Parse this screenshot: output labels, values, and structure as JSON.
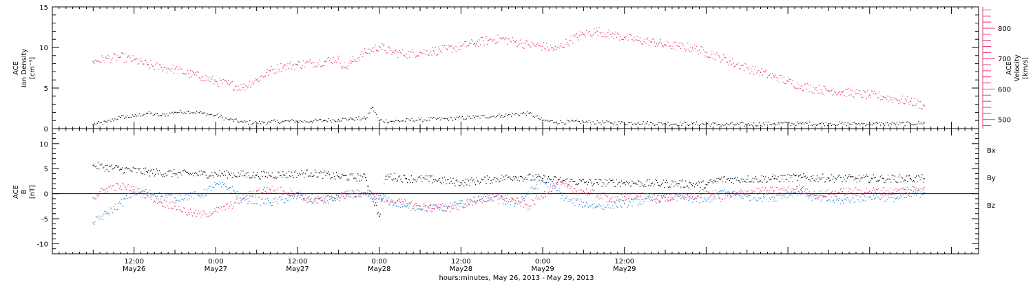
{
  "colors": {
    "black": "#000000",
    "red": "#e8356a",
    "blue": "#1e86d8"
  },
  "chart_data": [
    {
      "type": "scatter",
      "panel": "top",
      "ylabel_lines": [
        "ACE",
        "Ion Density",
        "[cm⁻³]"
      ],
      "ylim": [
        0,
        15
      ],
      "yticks": [
        0,
        5,
        10,
        15
      ],
      "right_axis": {
        "label_lines": [
          "ACE",
          "Velocity",
          "[km/s]"
        ],
        "ylim": [
          470,
          870
        ],
        "yticks": [
          500,
          600,
          700,
          800
        ]
      },
      "series": [
        {
          "color": "#000000",
          "axis": "left",
          "points": [
            [
              0,
              0.5
            ],
            [
              2,
              0.8
            ],
            [
              4,
              1.4
            ],
            [
              6,
              1.5
            ],
            [
              8,
              1.9
            ],
            [
              10,
              1.6
            ],
            [
              12,
              2.0
            ],
            [
              14,
              2.1
            ],
            [
              16,
              1.9
            ],
            [
              18,
              1.6
            ],
            [
              20,
              1.1
            ],
            [
              22,
              0.8
            ],
            [
              24,
              0.7
            ],
            [
              26,
              0.8
            ],
            [
              28,
              0.9
            ],
            [
              30,
              0.9
            ],
            [
              32,
              0.9
            ],
            [
              34,
              1.0
            ],
            [
              36,
              1.1
            ],
            [
              38,
              1.2
            ],
            [
              40,
              1.2
            ],
            [
              41,
              2.6
            ],
            [
              42,
              1.0
            ],
            [
              44,
              0.9
            ],
            [
              48,
              1.1
            ],
            [
              52,
              1.2
            ],
            [
              56,
              1.4
            ],
            [
              60,
              1.6
            ],
            [
              64,
              1.9
            ],
            [
              66,
              1.0
            ],
            [
              68,
              0.8
            ],
            [
              72,
              0.8
            ],
            [
              76,
              0.7
            ],
            [
              80,
              0.7
            ],
            [
              84,
              0.6
            ],
            [
              88,
              0.6
            ],
            [
              92,
              0.5
            ],
            [
              96,
              0.5
            ],
            [
              100,
              0.6
            ],
            [
              104,
              0.6
            ],
            [
              108,
              0.6
            ],
            [
              112,
              0.6
            ],
            [
              116,
              0.6
            ],
            [
              120,
              0.6
            ],
            [
              122,
              0.7
            ]
          ]
        },
        {
          "color": "#e8356a",
          "axis": "right",
          "points": [
            [
              0,
              690
            ],
            [
              2,
              700
            ],
            [
              4,
              705
            ],
            [
              6,
              695
            ],
            [
              8,
              680
            ],
            [
              10,
              670
            ],
            [
              12,
              665
            ],
            [
              14,
              650
            ],
            [
              16,
              640
            ],
            [
              18,
              625
            ],
            [
              20,
              615
            ],
            [
              22,
              605
            ],
            [
              24,
              630
            ],
            [
              26,
              660
            ],
            [
              28,
              675
            ],
            [
              30,
              680
            ],
            [
              32,
              685
            ],
            [
              34,
              690
            ],
            [
              36,
              700
            ],
            [
              37,
              670
            ],
            [
              38,
              690
            ],
            [
              40,
              720
            ],
            [
              42,
              740
            ],
            [
              44,
              720
            ],
            [
              46,
              715
            ],
            [
              48,
              720
            ],
            [
              50,
              725
            ],
            [
              52,
              730
            ],
            [
              54,
              740
            ],
            [
              56,
              750
            ],
            [
              58,
              760
            ],
            [
              60,
              765
            ],
            [
              62,
              755
            ],
            [
              64,
              745
            ],
            [
              66,
              740
            ],
            [
              68,
              730
            ],
            [
              70,
              760
            ],
            [
              72,
              780
            ],
            [
              74,
              790
            ],
            [
              76,
              780
            ],
            [
              78,
              770
            ],
            [
              80,
              760
            ],
            [
              82,
              755
            ],
            [
              84,
              745
            ],
            [
              86,
              740
            ],
            [
              88,
              735
            ],
            [
              90,
              720
            ],
            [
              92,
              705
            ],
            [
              94,
              685
            ],
            [
              96,
              670
            ],
            [
              98,
              655
            ],
            [
              100,
              640
            ],
            [
              102,
              625
            ],
            [
              104,
              610
            ],
            [
              106,
              600
            ],
            [
              108,
              595
            ],
            [
              110,
              590
            ],
            [
              112,
              585
            ],
            [
              114,
              580
            ],
            [
              116,
              575
            ],
            [
              118,
              565
            ],
            [
              120,
              560
            ],
            [
              122,
              545
            ]
          ]
        }
      ]
    },
    {
      "type": "scatter",
      "panel": "bottom",
      "ylabel_lines": [
        "ACE",
        "B",
        "[nT]"
      ],
      "ylim": [
        -12,
        13
      ],
      "yticks": [
        -10,
        -5,
        0,
        5,
        10
      ],
      "zero_line": true,
      "series": [
        {
          "name": "Bx",
          "color": "#000000",
          "points": [
            [
              0,
              5.6
            ],
            [
              4,
              4.9
            ],
            [
              8,
              4.3
            ],
            [
              12,
              4.0
            ],
            [
              16,
              3.9
            ],
            [
              20,
              3.9
            ],
            [
              24,
              3.7
            ],
            [
              28,
              3.8
            ],
            [
              32,
              4.1
            ],
            [
              36,
              3.4
            ],
            [
              40,
              3.2
            ],
            [
              42,
              -4.5
            ],
            [
              43,
              3.5
            ],
            [
              46,
              3.0
            ],
            [
              50,
              2.8
            ],
            [
              54,
              2.2
            ],
            [
              58,
              2.8
            ],
            [
              62,
              3.4
            ],
            [
              66,
              3.0
            ],
            [
              70,
              2.4
            ],
            [
              74,
              2.2
            ],
            [
              78,
              2.2
            ],
            [
              82,
              2.0
            ],
            [
              86,
              2.0
            ],
            [
              90,
              1.8
            ],
            [
              92,
              2.8
            ],
            [
              96,
              2.9
            ],
            [
              100,
              3.0
            ],
            [
              104,
              3.2
            ],
            [
              108,
              3.1
            ],
            [
              112,
              3.0
            ],
            [
              116,
              3.0
            ],
            [
              120,
              3.0
            ],
            [
              122,
              3.0
            ]
          ]
        },
        {
          "name": "By",
          "color": "#1e86d8",
          "points": [
            [
              0,
              -5.8
            ],
            [
              2,
              -4.0
            ],
            [
              4,
              -2.0
            ],
            [
              6,
              0.3
            ],
            [
              8,
              0.2
            ],
            [
              10,
              -0.5
            ],
            [
              12,
              -0.8
            ],
            [
              16,
              -0.2
            ],
            [
              18,
              1.8
            ],
            [
              20,
              1.2
            ],
            [
              22,
              -1.0
            ],
            [
              26,
              -1.8
            ],
            [
              30,
              -0.5
            ],
            [
              34,
              -1.5
            ],
            [
              38,
              0.0
            ],
            [
              42,
              -1.0
            ],
            [
              46,
              -2.5
            ],
            [
              50,
              -3.0
            ],
            [
              54,
              -2.0
            ],
            [
              58,
              -0.8
            ],
            [
              62,
              -2.0
            ],
            [
              66,
              2.5
            ],
            [
              70,
              -1.5
            ],
            [
              74,
              -2.5
            ],
            [
              78,
              -2.0
            ],
            [
              82,
              -1.2
            ],
            [
              86,
              -0.6
            ],
            [
              90,
              -1.5
            ],
            [
              92,
              0.4
            ],
            [
              96,
              -0.6
            ],
            [
              100,
              -0.8
            ],
            [
              104,
              0.6
            ],
            [
              106,
              -1.0
            ],
            [
              110,
              -1.4
            ],
            [
              114,
              -0.6
            ],
            [
              118,
              -0.9
            ],
            [
              122,
              0.2
            ]
          ]
        },
        {
          "name": "Bz",
          "color": "#e8356a",
          "points": [
            [
              0,
              -0.8
            ],
            [
              2,
              1.1
            ],
            [
              4,
              1.5
            ],
            [
              6,
              0.8
            ],
            [
              8,
              -0.4
            ],
            [
              10,
              -1.8
            ],
            [
              12,
              -2.5
            ],
            [
              14,
              -3.8
            ],
            [
              16,
              -4.2
            ],
            [
              18,
              -3.5
            ],
            [
              20,
              -2.5
            ],
            [
              22,
              -1.0
            ],
            [
              24,
              0.5
            ],
            [
              26,
              0.8
            ],
            [
              28,
              0.5
            ],
            [
              30,
              0.2
            ],
            [
              32,
              -1.5
            ],
            [
              34,
              -1.0
            ],
            [
              36,
              -0.5
            ],
            [
              40,
              0.2
            ],
            [
              44,
              -1.5
            ],
            [
              48,
              -2.5
            ],
            [
              52,
              -3.0
            ],
            [
              56,
              -1.5
            ],
            [
              60,
              -0.5
            ],
            [
              64,
              -2.5
            ],
            [
              68,
              2.0
            ],
            [
              70,
              1.0
            ],
            [
              72,
              0.5
            ],
            [
              76,
              -1.0
            ],
            [
              80,
              -0.5
            ],
            [
              84,
              -0.8
            ],
            [
              88,
              -0.6
            ],
            [
              90,
              0.5
            ],
            [
              92,
              -0.9
            ],
            [
              96,
              0.4
            ],
            [
              100,
              0.6
            ],
            [
              104,
              1.0
            ],
            [
              106,
              -0.3
            ],
            [
              110,
              0.4
            ],
            [
              114,
              0.5
            ],
            [
              118,
              0.5
            ],
            [
              122,
              1.2
            ]
          ]
        }
      ]
    }
  ],
  "x_axis": {
    "label": "hours:minutes, May 26, 2013 - May 29, 2013",
    "range_hours": [
      -6,
      130
    ],
    "ticks": [
      {
        "hour": 6,
        "time": "12:00",
        "date": "May26"
      },
      {
        "hour": 18,
        "time": "0:00",
        "date": "May27"
      },
      {
        "hour": 30,
        "time": "12:00",
        "date": "May27"
      },
      {
        "hour": 42,
        "time": "0:00",
        "date": "May28"
      },
      {
        "hour": 54,
        "time": "12:00",
        "date": "May28"
      },
      {
        "hour": 66,
        "time": "0:00",
        "date": "May29"
      },
      {
        "hour": 78,
        "time": "12:00",
        "date": "May29"
      }
    ]
  },
  "legend": [
    {
      "text": "Bx",
      "color": "#000000"
    },
    {
      "text": "By",
      "color": "#1e86d8"
    },
    {
      "text": "Bz",
      "color": "#e8356a"
    }
  ]
}
